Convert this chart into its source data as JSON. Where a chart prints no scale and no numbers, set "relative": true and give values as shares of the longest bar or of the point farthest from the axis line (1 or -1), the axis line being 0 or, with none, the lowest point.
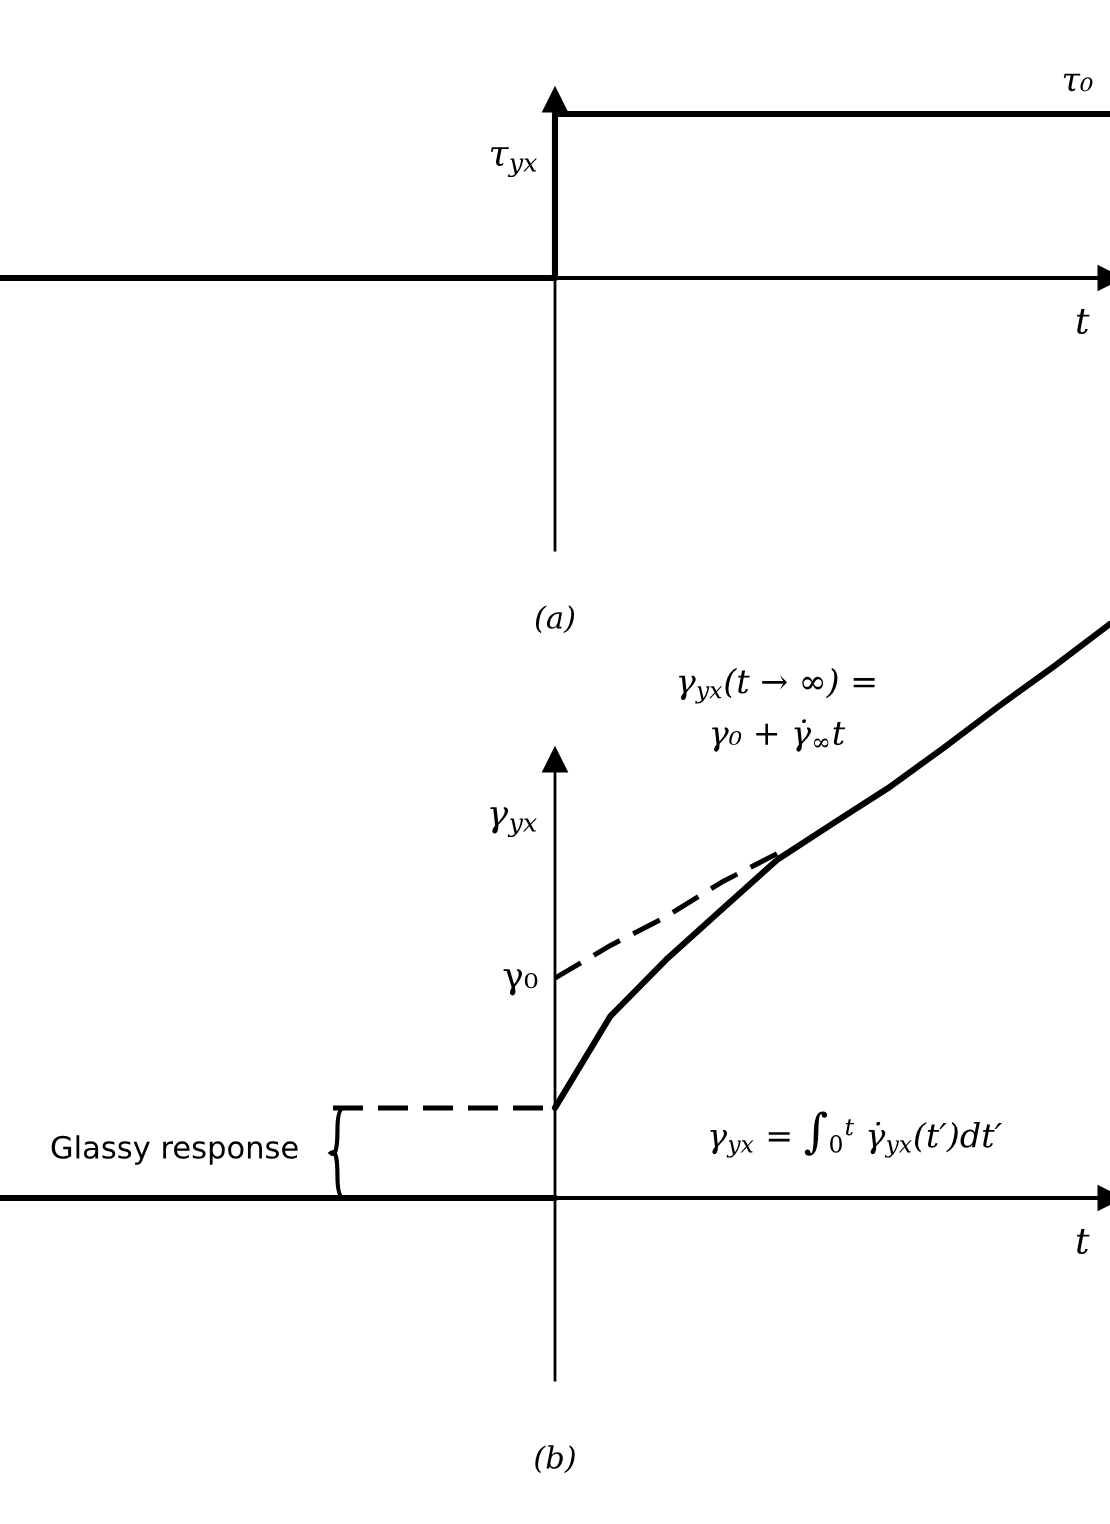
{
  "chart_data": [
    {
      "type": "step",
      "relative": true,
      "title": "(a)",
      "xlabel": "t",
      "ylabel": "τ$_{yx}$",
      "tick_labels": false,
      "categories": [
        null,
        null,
        null,
        null,
        null,
        null,
        null,
        null,
        null,
        null,
        null,
        null,
        null,
        null,
        null,
        null,
        null,
        null,
        null,
        null,
        null
      ],
      "series": [
        {
          "name": "τ₀",
          "color": "#000000",
          "values": [
            0,
            0,
            0,
            0,
            0,
            0,
            0,
            0,
            0,
            0,
            1,
            1,
            1,
            1,
            1,
            1,
            1,
            1,
            1,
            1,
            1
          ]
        }
      ]
    },
    {
      "type": "line",
      "relative": true,
      "title": "(b)",
      "xlabel": "t",
      "ylabel": "γ$_{yx}$",
      "tick_labels": false,
      "categories": [
        null,
        null,
        null,
        null,
        null,
        null,
        null,
        null,
        null,
        null,
        null,
        null,
        null,
        null,
        null,
        null,
        null,
        null,
        null,
        null,
        null
      ],
      "series": [
        {
          "color": "#000000",
          "values": [
            0,
            0,
            0,
            0,
            0,
            0,
            0,
            0,
            0,
            0,
            0,
            null,
            null,
            null,
            null,
            null,
            null,
            null,
            null,
            null,
            null
          ]
        },
        {
          "color": "#000000",
          "values": [
            null,
            null,
            null,
            null,
            null,
            null,
            null,
            null,
            null,
            null,
            0.157,
            0.317,
            0.415,
            0.502,
            0.589,
            0.652,
            0.714,
            0.784,
            0.857,
            0.927,
            1.0
          ]
        },
        {
          "color": "#000000",
          "line_style": "dashed",
          "values": [
            null,
            null,
            null,
            null,
            null,
            null,
            null,
            null,
            null,
            null,
            0.383,
            0.44,
            0.49,
            0.55,
            0.6,
            null,
            null,
            null,
            null,
            null,
            null
          ]
        },
        {
          "color": "#000000",
          "line_style": "dashed",
          "values": [
            null,
            null,
            null,
            null,
            null,
            null,
            0.157,
            0.157,
            0.157,
            0.157,
            0.157,
            null,
            null,
            null,
            null,
            null,
            null,
            null,
            null,
            null,
            null
          ]
        }
      ],
      "annotations": [
        "γ₀",
        "γ$_{yx}$(t → ∞) =\nγ₀ + γ̇$_{∞}$t",
        "γ$_{yx}$ = ∫$_{0}$$^{t}$ γ̇$_{yx}$(t′)dt′",
        "Glassy response"
      ]
    }
  ]
}
